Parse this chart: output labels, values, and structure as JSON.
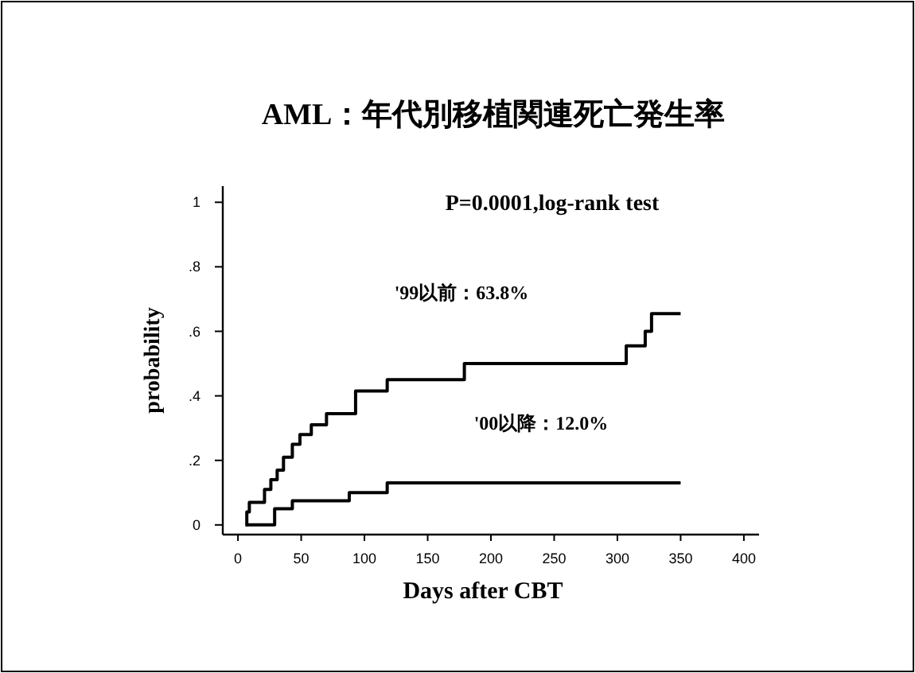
{
  "chart_data": {
    "type": "step",
    "title": "AML：年代別移植関連死亡発生率",
    "xlabel": "Days after CBT",
    "ylabel": "probability",
    "xlim": [
      -12,
      412
    ],
    "ylim": [
      -0.03,
      1.05
    ],
    "xticks": [
      0,
      50,
      100,
      150,
      200,
      250,
      300,
      350,
      400
    ],
    "yticks": [
      {
        "value": 0,
        "label": "0"
      },
      {
        "value": 0.2,
        "label": ".2"
      },
      {
        "value": 0.4,
        "label": ".4"
      },
      {
        "value": 0.6,
        "label": ".6"
      },
      {
        "value": 0.8,
        "label": ".8"
      },
      {
        "value": 1,
        "label": "1"
      }
    ],
    "series": [
      {
        "color": "#000000",
        "x": [
          6,
          7,
          9,
          21,
          26,
          31,
          36,
          43,
          49,
          58,
          70,
          93,
          118,
          179,
          307,
          322,
          327,
          350
        ],
        "values": [
          0,
          0.04,
          0.07,
          0.11,
          0.14,
          0.17,
          0.21,
          0.25,
          0.28,
          0.31,
          0.345,
          0.415,
          0.45,
          0.5,
          0.555,
          0.6,
          0.655,
          0.655
        ]
      },
      {
        "color": "#000000",
        "x": [
          6,
          29,
          43,
          88,
          118,
          350
        ],
        "values": [
          0,
          0.05,
          0.075,
          0.1,
          0.13,
          0.13
        ]
      }
    ],
    "annotations": [
      "P=0.0001,log-rank test",
      "'99以前：63.8%",
      "'00以降：12.0%"
    ],
    "grid": false,
    "marker": "none",
    "line_style": "solid"
  }
}
